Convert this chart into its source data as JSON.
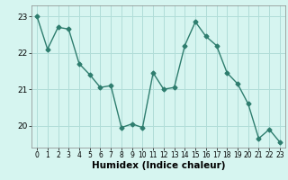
{
  "x": [
    0,
    1,
    2,
    3,
    4,
    5,
    6,
    7,
    8,
    9,
    10,
    11,
    12,
    13,
    14,
    15,
    16,
    17,
    18,
    19,
    20,
    21,
    22,
    23
  ],
  "y": [
    23.0,
    22.1,
    22.7,
    22.65,
    21.7,
    21.4,
    21.05,
    21.1,
    19.95,
    20.05,
    19.95,
    21.45,
    21.0,
    21.05,
    22.2,
    22.85,
    22.45,
    22.2,
    21.45,
    21.15,
    20.6,
    19.65,
    19.9,
    19.55
  ],
  "line_color": "#2e7d6e",
  "marker": "D",
  "markersize": 2.5,
  "linewidth": 1.0,
  "bg_color": "#d6f5f0",
  "grid_color": "#b0ddd8",
  "xlabel": "Humidex (Indice chaleur)",
  "xlabel_fontsize": 7.5,
  "tick_fontsize": 6.5,
  "ylim": [
    19.4,
    23.3
  ],
  "yticks": [
    20,
    21,
    22,
    23
  ],
  "xticks": [
    0,
    1,
    2,
    3,
    4,
    5,
    6,
    7,
    8,
    9,
    10,
    11,
    12,
    13,
    14,
    15,
    16,
    17,
    18,
    19,
    20,
    21,
    22,
    23
  ]
}
